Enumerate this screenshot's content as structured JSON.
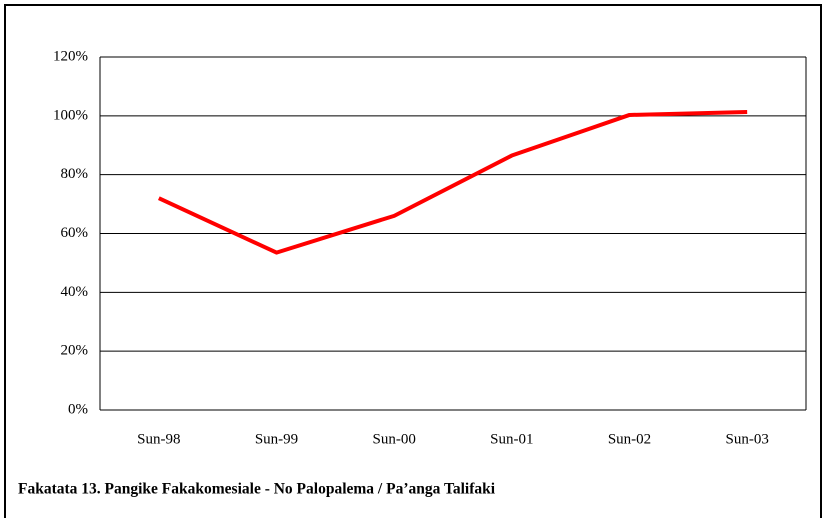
{
  "chart_data": {
    "type": "line",
    "caption": "Fakatata 13.   Pangike Fakakomesiale - No Palopalema / Pa’anga Talifaki",
    "categories": [
      "Sun-98",
      "Sun-99",
      "Sun-00",
      "Sun-01",
      "Sun-02",
      "Sun-03"
    ],
    "series": [
      {
        "color": "#ff0000",
        "values": [
          72,
          53.5,
          66,
          86.5,
          100.3,
          101.3
        ]
      }
    ],
    "ylim": [
      0,
      120
    ],
    "yticks": [
      {
        "value": 0,
        "label": "0%"
      },
      {
        "value": 20,
        "label": "20%"
      },
      {
        "value": 40,
        "label": "40%"
      },
      {
        "value": 60,
        "label": "60%"
      },
      {
        "value": 80,
        "label": "80%"
      },
      {
        "value": 100,
        "label": "100%"
      },
      {
        "value": 120,
        "label": "120%"
      }
    ],
    "grid": true
  }
}
